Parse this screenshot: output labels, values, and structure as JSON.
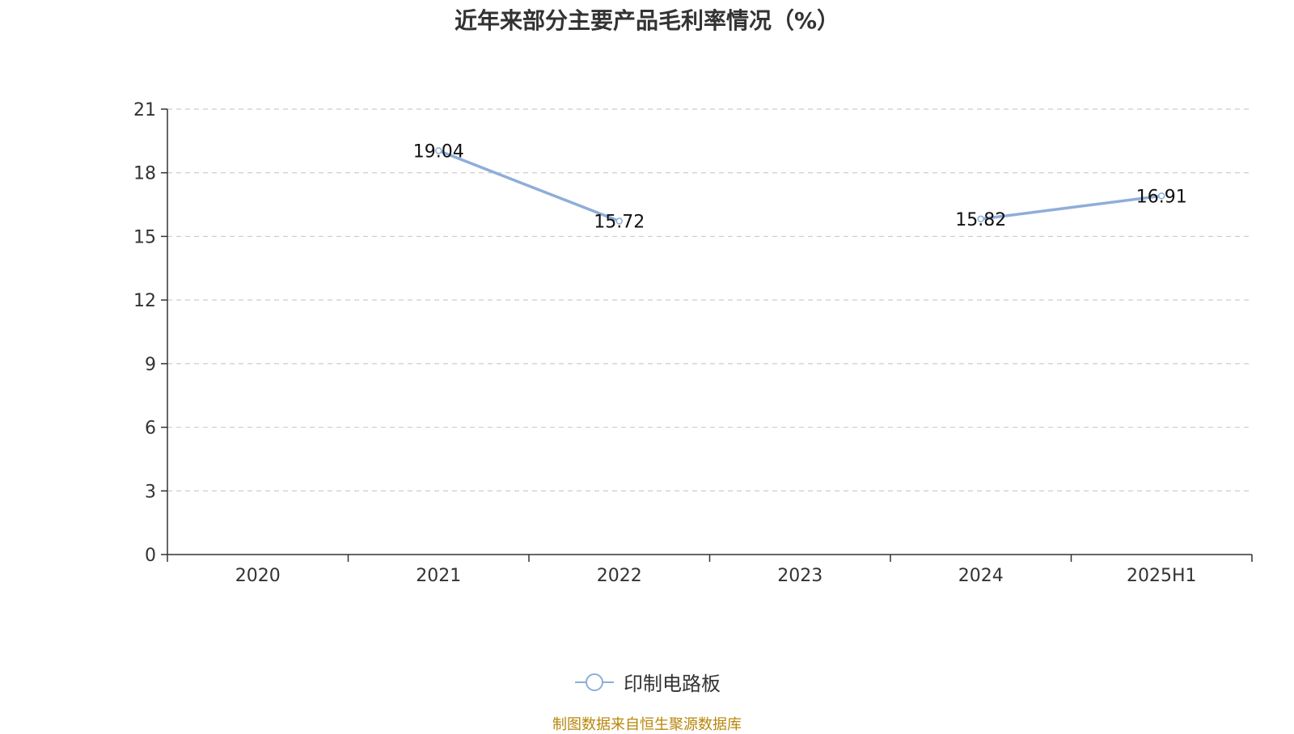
{
  "chart_data": {
    "type": "line",
    "title": "近年来部分主要产品毛利率情况（%）",
    "categories": [
      "2020",
      "2021",
      "2022",
      "2023",
      "2024",
      "2025H1"
    ],
    "series": [
      {
        "name": "印制电路板",
        "values": [
          null,
          19.04,
          15.72,
          null,
          15.82,
          16.91
        ]
      }
    ],
    "data_labels": [
      "",
      "19.04",
      "15.72",
      "",
      "15.82",
      "16.91"
    ],
    "yticks": [
      "0",
      "3",
      "6",
      "9",
      "12",
      "15",
      "18",
      "21"
    ],
    "ylim": [
      0,
      21
    ],
    "grid": true,
    "legend_position": "bottom-center",
    "colors": {
      "series": "#8fadd9",
      "grid": "#cccccc",
      "axis": "#333333",
      "text": "#333333"
    }
  },
  "source": "制图数据来自恒生聚源数据库"
}
